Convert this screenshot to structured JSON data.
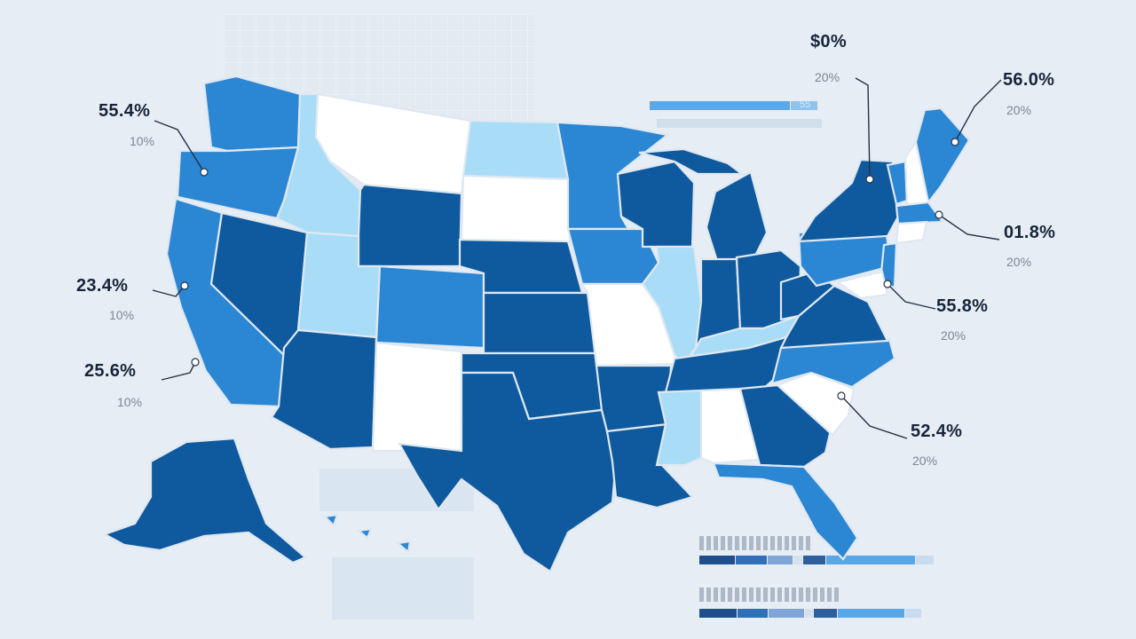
{
  "map": {
    "type": "choropleth",
    "region": "United States",
    "states": [
      {
        "name": "Washington",
        "shade": "mid"
      },
      {
        "name": "Oregon",
        "shade": "mid"
      },
      {
        "name": "California",
        "shade": "mid"
      },
      {
        "name": "Idaho",
        "shade": "light"
      },
      {
        "name": "Nevada",
        "shade": "dark"
      },
      {
        "name": "Montana",
        "shade": "white"
      },
      {
        "name": "Wyoming",
        "shade": "dark"
      },
      {
        "name": "Utah",
        "shade": "light"
      },
      {
        "name": "Arizona",
        "shade": "dark"
      },
      {
        "name": "Colorado",
        "shade": "mid"
      },
      {
        "name": "New Mexico",
        "shade": "white"
      },
      {
        "name": "North Dakota",
        "shade": "light"
      },
      {
        "name": "South Dakota",
        "shade": "white"
      },
      {
        "name": "Nebraska",
        "shade": "dark"
      },
      {
        "name": "Kansas",
        "shade": "dark"
      },
      {
        "name": "Oklahoma",
        "shade": "dark"
      },
      {
        "name": "Texas",
        "shade": "dark"
      },
      {
        "name": "Minnesota",
        "shade": "mid"
      },
      {
        "name": "Iowa",
        "shade": "mid"
      },
      {
        "name": "Missouri",
        "shade": "white"
      },
      {
        "name": "Arkansas",
        "shade": "dark"
      },
      {
        "name": "Louisiana",
        "shade": "dark"
      },
      {
        "name": "Wisconsin",
        "shade": "dark"
      },
      {
        "name": "Illinois",
        "shade": "light"
      },
      {
        "name": "Michigan",
        "shade": "dark"
      },
      {
        "name": "Indiana",
        "shade": "dark"
      },
      {
        "name": "Ohio",
        "shade": "dark"
      },
      {
        "name": "Kentucky",
        "shade": "light"
      },
      {
        "name": "Tennessee",
        "shade": "dark"
      },
      {
        "name": "Mississippi",
        "shade": "light"
      },
      {
        "name": "Alabama",
        "shade": "white"
      },
      {
        "name": "Georgia",
        "shade": "dark"
      },
      {
        "name": "Florida",
        "shade": "mid"
      },
      {
        "name": "South Carolina",
        "shade": "white"
      },
      {
        "name": "North Carolina",
        "shade": "mid"
      },
      {
        "name": "Virginia",
        "shade": "dark"
      },
      {
        "name": "West Virginia",
        "shade": "dark"
      },
      {
        "name": "Pennsylvania",
        "shade": "mid"
      },
      {
        "name": "New York",
        "shade": "dark"
      },
      {
        "name": "Vermont",
        "shade": "mid"
      },
      {
        "name": "New Hampshire",
        "shade": "white"
      },
      {
        "name": "Maine",
        "shade": "mid"
      },
      {
        "name": "Massachusetts",
        "shade": "mid"
      },
      {
        "name": "New Jersey",
        "shade": "mid"
      },
      {
        "name": "Alaska",
        "shade": "dark"
      },
      {
        "name": "Hawaii",
        "shade": "mid"
      }
    ]
  },
  "callouts": [
    {
      "id": "nw",
      "value": "55.4%",
      "sub": "10%"
    },
    {
      "id": "ca-north",
      "value": "23.4%",
      "sub": "10%"
    },
    {
      "id": "ca-south",
      "value": "25.6%",
      "sub": "10%"
    },
    {
      "id": "north",
      "value": "$0%",
      "sub": "20%"
    },
    {
      "id": "maine",
      "value": "56.0%",
      "sub": "20%"
    },
    {
      "id": "mass",
      "value": "01.8%",
      "sub": "20%"
    },
    {
      "id": "mid-atlantic",
      "value": "55.8%",
      "sub": "20%"
    },
    {
      "id": "southeast",
      "value": "52.4%",
      "sub": "20%"
    }
  ],
  "top_legend": {
    "label": "55"
  },
  "colors": {
    "background": "#e6edf4",
    "dark": "#0f5a9e",
    "mid": "#2b86d3",
    "light": "#a9dcf7",
    "white": "#ffffff",
    "border": "#dfe8f1"
  }
}
